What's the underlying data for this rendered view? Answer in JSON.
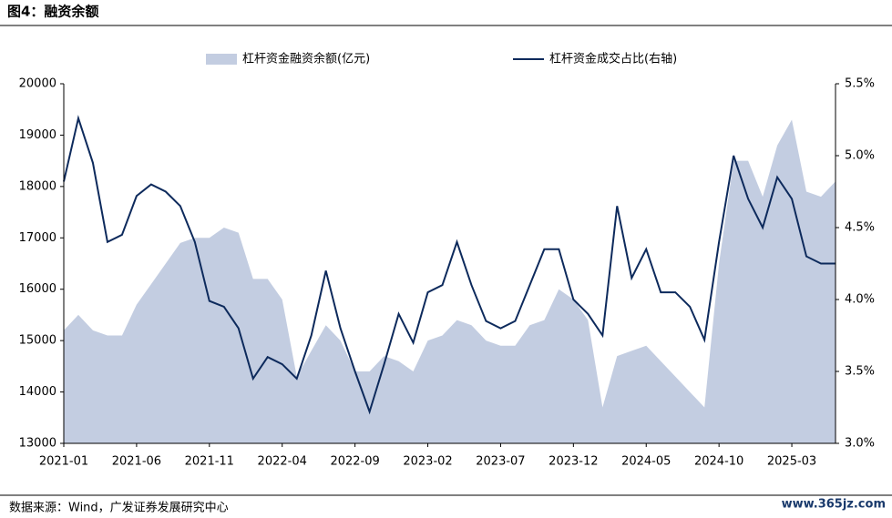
{
  "header": {
    "title": "图4：融资余额"
  },
  "footer": {
    "source": "数据来源：Wind，广发证券发展研究中心",
    "watermark": "www.365jz.com"
  },
  "chart_data": {
    "type": "combo",
    "x": [
      "2021-01",
      "2021-02",
      "2021-03",
      "2021-04",
      "2021-05",
      "2021-06",
      "2021-07",
      "2021-08",
      "2021-09",
      "2021-10",
      "2021-11",
      "2021-12",
      "2022-01",
      "2022-02",
      "2022-03",
      "2022-04",
      "2022-05",
      "2022-06",
      "2022-07",
      "2022-08",
      "2022-09",
      "2022-10",
      "2022-11",
      "2022-12",
      "2023-01",
      "2023-02",
      "2023-03",
      "2023-04",
      "2023-05",
      "2023-06",
      "2023-07",
      "2023-08",
      "2023-09",
      "2023-10",
      "2023-11",
      "2023-12",
      "2024-01",
      "2024-02",
      "2024-03",
      "2024-04",
      "2024-05",
      "2024-06",
      "2024-07",
      "2024-08",
      "2024-09",
      "2024-10",
      "2024-11",
      "2024-12",
      "2025-01",
      "2025-02",
      "2025-03",
      "2025-04",
      "2025-05",
      "2025-06"
    ],
    "xticks": [
      "2021-01",
      "2021-06",
      "2021-11",
      "2022-04",
      "2022-09",
      "2023-02",
      "2023-07",
      "2023-12",
      "2024-05",
      "2024-10",
      "2025-03"
    ],
    "series": [
      {
        "name": "杠杆资金融资余额(亿元)",
        "type": "area",
        "color": "#c3cde1",
        "values": [
          15200,
          15500,
          15200,
          15100,
          15100,
          15700,
          16100,
          16500,
          16900,
          17000,
          17000,
          17200,
          17100,
          16200,
          16200,
          15800,
          14300,
          14800,
          15300,
          15000,
          14400,
          14400,
          14700,
          14600,
          14400,
          15000,
          15100,
          15400,
          15300,
          15000,
          14900,
          14900,
          15300,
          15400,
          16000,
          15800,
          15400,
          13700,
          14700,
          14800,
          14900,
          14600,
          14300,
          14000,
          13700,
          16500,
          18500,
          18500,
          17800,
          18800,
          19300,
          17900,
          17800,
          18100
        ]
      },
      {
        "name": "杠杆资金成交占比(右轴)",
        "type": "line",
        "axis": "y2",
        "color": "#0d2a5c",
        "values": [
          4.82,
          5.26,
          4.95,
          4.4,
          4.45,
          4.72,
          4.8,
          4.75,
          4.65,
          4.4,
          3.99,
          3.95,
          3.8,
          3.45,
          3.6,
          3.55,
          3.45,
          3.75,
          4.2,
          3.8,
          3.5,
          3.22,
          3.55,
          3.9,
          3.7,
          4.05,
          4.1,
          4.4,
          4.1,
          3.85,
          3.8,
          3.85,
          4.1,
          4.35,
          4.35,
          4.0,
          3.9,
          3.75,
          4.65,
          4.15,
          4.35,
          4.05,
          4.05,
          3.95,
          3.72,
          4.4,
          5.0,
          4.7,
          4.5,
          4.85,
          4.7,
          4.3,
          4.25,
          4.25
        ]
      }
    ],
    "ylim": [
      13000,
      20000
    ],
    "yticks": [
      13000,
      14000,
      15000,
      16000,
      17000,
      18000,
      19000,
      20000
    ],
    "y2lim": [
      3.0,
      5.5
    ],
    "y2ticks": [
      {
        "value": 3.0,
        "label": "3.0%"
      },
      {
        "value": 3.5,
        "label": "3.5%"
      },
      {
        "value": 4.0,
        "label": "4.0%"
      },
      {
        "value": 4.5,
        "label": "4.5%"
      },
      {
        "value": 5.0,
        "label": "5.0%"
      },
      {
        "value": 5.5,
        "label": "5.5%"
      }
    ],
    "legend": "top"
  }
}
